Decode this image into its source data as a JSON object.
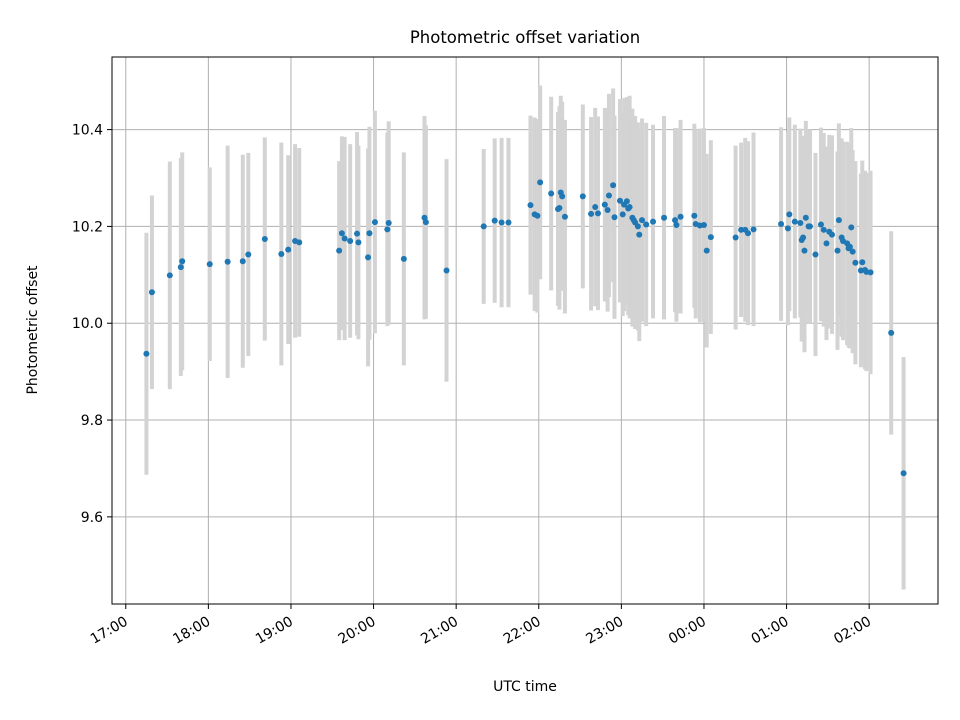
{
  "chart_data": {
    "type": "scatter",
    "title": "Photometric offset variation",
    "xlabel": "UTC time",
    "ylabel": "Photometric offset",
    "x_axis": {
      "kind": "time",
      "range": [
        "16:50",
        "26:50"
      ],
      "ticks": [
        "17:00",
        "18:00",
        "19:00",
        "20:00",
        "21:00",
        "22:00",
        "23:00",
        "00:00",
        "01:00",
        "02:00"
      ],
      "tick_label_rotation": "30deg"
    },
    "y_axis": {
      "range": [
        9.42,
        10.55
      ],
      "ticks": [
        "9.6",
        "9.8",
        "10.0",
        "10.2",
        "10.4"
      ]
    },
    "grid": true,
    "marker_color": "#1f77b4",
    "errorbar_color": "#d3d3d3",
    "points": [
      [
        "17:15",
        9.937,
        0.25
      ],
      [
        "17:19",
        10.064,
        0.2
      ],
      [
        "17:32",
        10.099,
        0.235
      ],
      [
        "17:40",
        10.116,
        0.225
      ],
      [
        "17:41",
        10.128,
        0.225
      ],
      [
        "18:01",
        10.122,
        0.2
      ],
      [
        "18:14",
        10.127,
        0.24
      ],
      [
        "18:25",
        10.128,
        0.22
      ],
      [
        "18:29",
        10.142,
        0.21
      ],
      [
        "18:41",
        10.174,
        0.21
      ],
      [
        "18:53",
        10.143,
        0.23
      ],
      [
        "18:58",
        10.152,
        0.195
      ],
      [
        "19:03",
        10.17,
        0.2
      ],
      [
        "19:06",
        10.167,
        0.195
      ],
      [
        "19:35",
        10.15,
        0.185
      ],
      [
        "19:37",
        10.186,
        0.2
      ],
      [
        "19:39",
        10.175,
        0.21
      ],
      [
        "19:43",
        10.17,
        0.2
      ],
      [
        "19:48",
        10.185,
        0.21
      ],
      [
        "19:49",
        10.167,
        0.2
      ],
      [
        "19:56",
        10.136,
        0.225
      ],
      [
        "19:57",
        10.186,
        0.22
      ],
      [
        "20:01",
        10.209,
        0.23
      ],
      [
        "20:10",
        10.194,
        0.2
      ],
      [
        "20:11",
        10.207,
        0.21
      ],
      [
        "20:22",
        10.133,
        0.22
      ],
      [
        "20:37",
        10.218,
        0.21
      ],
      [
        "20:38",
        10.209,
        0.2
      ],
      [
        "20:53",
        10.109,
        0.23
      ],
      [
        "21:20",
        10.2,
        0.16
      ],
      [
        "21:28",
        10.212,
        0.17
      ],
      [
        "21:33",
        10.208,
        0.175
      ],
      [
        "21:38",
        10.208,
        0.175
      ],
      [
        "21:54",
        10.244,
        0.185
      ],
      [
        "21:57",
        10.225,
        0.2
      ],
      [
        "21:59",
        10.222,
        0.2
      ],
      [
        "22:01",
        10.291,
        0.2
      ],
      [
        "22:09",
        10.268,
        0.2
      ],
      [
        "22:14",
        10.236,
        0.2
      ],
      [
        "22:15",
        10.238,
        0.21
      ],
      [
        "22:16",
        10.27,
        0.2
      ],
      [
        "22:17",
        10.262,
        0.195
      ],
      [
        "22:19",
        10.22,
        0.2
      ],
      [
        "22:32",
        10.262,
        0.19
      ],
      [
        "22:38",
        10.226,
        0.2
      ],
      [
        "22:41",
        10.24,
        0.205
      ],
      [
        "22:43",
        10.227,
        0.2
      ],
      [
        "22:48",
        10.245,
        0.2
      ],
      [
        "22:50",
        10.234,
        0.21
      ],
      [
        "22:51",
        10.264,
        0.21
      ],
      [
        "22:54",
        10.285,
        0.2
      ],
      [
        "22:55",
        10.219,
        0.21
      ],
      [
        "22:59",
        10.253,
        0.21
      ],
      [
        "23:01",
        10.225,
        0.21
      ],
      [
        "23:02",
        10.245,
        0.22
      ],
      [
        "23:04",
        10.252,
        0.215
      ],
      [
        "23:05",
        10.237,
        0.22
      ],
      [
        "23:06",
        10.24,
        0.23
      ],
      [
        "23:08",
        10.218,
        0.225
      ],
      [
        "23:09",
        10.213,
        0.215
      ],
      [
        "23:10",
        10.208,
        0.22
      ],
      [
        "23:12",
        10.2,
        0.215
      ],
      [
        "23:13",
        10.183,
        0.22
      ],
      [
        "23:15",
        10.213,
        0.21
      ],
      [
        "23:18",
        10.204,
        0.21
      ],
      [
        "23:23",
        10.21,
        0.2
      ],
      [
        "23:31",
        10.218,
        0.21
      ],
      [
        "23:39",
        10.213,
        0.19
      ],
      [
        "23:40",
        10.203,
        0.2
      ],
      [
        "23:43",
        10.22,
        0.2
      ],
      [
        "23:53",
        10.222,
        0.19
      ],
      [
        "23:54",
        10.205,
        0.195
      ],
      [
        "23:57",
        10.202,
        0.2
      ],
      [
        "00:00",
        10.203,
        0.2
      ],
      [
        "00:02",
        10.15,
        0.2
      ],
      [
        "00:05",
        10.178,
        0.2
      ],
      [
        "00:23",
        10.177,
        0.19
      ],
      [
        "00:27",
        10.193,
        0.18
      ],
      [
        "00:30",
        10.193,
        0.19
      ],
      [
        "00:32",
        10.186,
        0.19
      ],
      [
        "00:36",
        10.194,
        0.2
      ],
      [
        "00:56",
        10.205,
        0.2
      ],
      [
        "01:01",
        10.196,
        0.2
      ],
      [
        "01:02",
        10.225,
        0.2
      ],
      [
        "01:06",
        10.21,
        0.2
      ],
      [
        "01:10",
        10.207,
        0.195
      ],
      [
        "01:11",
        10.172,
        0.21
      ],
      [
        "01:12",
        10.177,
        0.21
      ],
      [
        "01:13",
        10.15,
        0.21
      ],
      [
        "01:14",
        10.218,
        0.2
      ],
      [
        "01:16",
        10.2,
        0.2
      ],
      [
        "01:17",
        10.2,
        0.2
      ],
      [
        "01:21",
        10.142,
        0.21
      ],
      [
        "01:25",
        10.204,
        0.2
      ],
      [
        "01:27",
        10.193,
        0.2
      ],
      [
        "01:29",
        10.165,
        0.2
      ],
      [
        "01:31",
        10.189,
        0.2
      ],
      [
        "01:33",
        10.183,
        0.205
      ],
      [
        "01:37",
        10.15,
        0.205
      ],
      [
        "01:38",
        10.213,
        0.2
      ],
      [
        "01:40",
        10.177,
        0.205
      ],
      [
        "01:41",
        10.17,
        0.205
      ],
      [
        "01:44",
        10.165,
        0.21
      ],
      [
        "01:45",
        10.155,
        0.205
      ],
      [
        "01:46",
        10.158,
        0.21
      ],
      [
        "01:47",
        10.198,
        0.205
      ],
      [
        "01:48",
        10.148,
        0.21
      ],
      [
        "01:50",
        10.125,
        0.21
      ],
      [
        "01:54",
        10.109,
        0.2
      ],
      [
        "01:55",
        10.126,
        0.21
      ],
      [
        "01:57",
        10.11,
        0.205
      ],
      [
        "01:58",
        10.106,
        0.205
      ],
      [
        "02:01",
        10.105,
        0.21
      ],
      [
        "02:16",
        9.98,
        0.21
      ],
      [
        "02:25",
        9.69,
        0.24
      ]
    ]
  }
}
